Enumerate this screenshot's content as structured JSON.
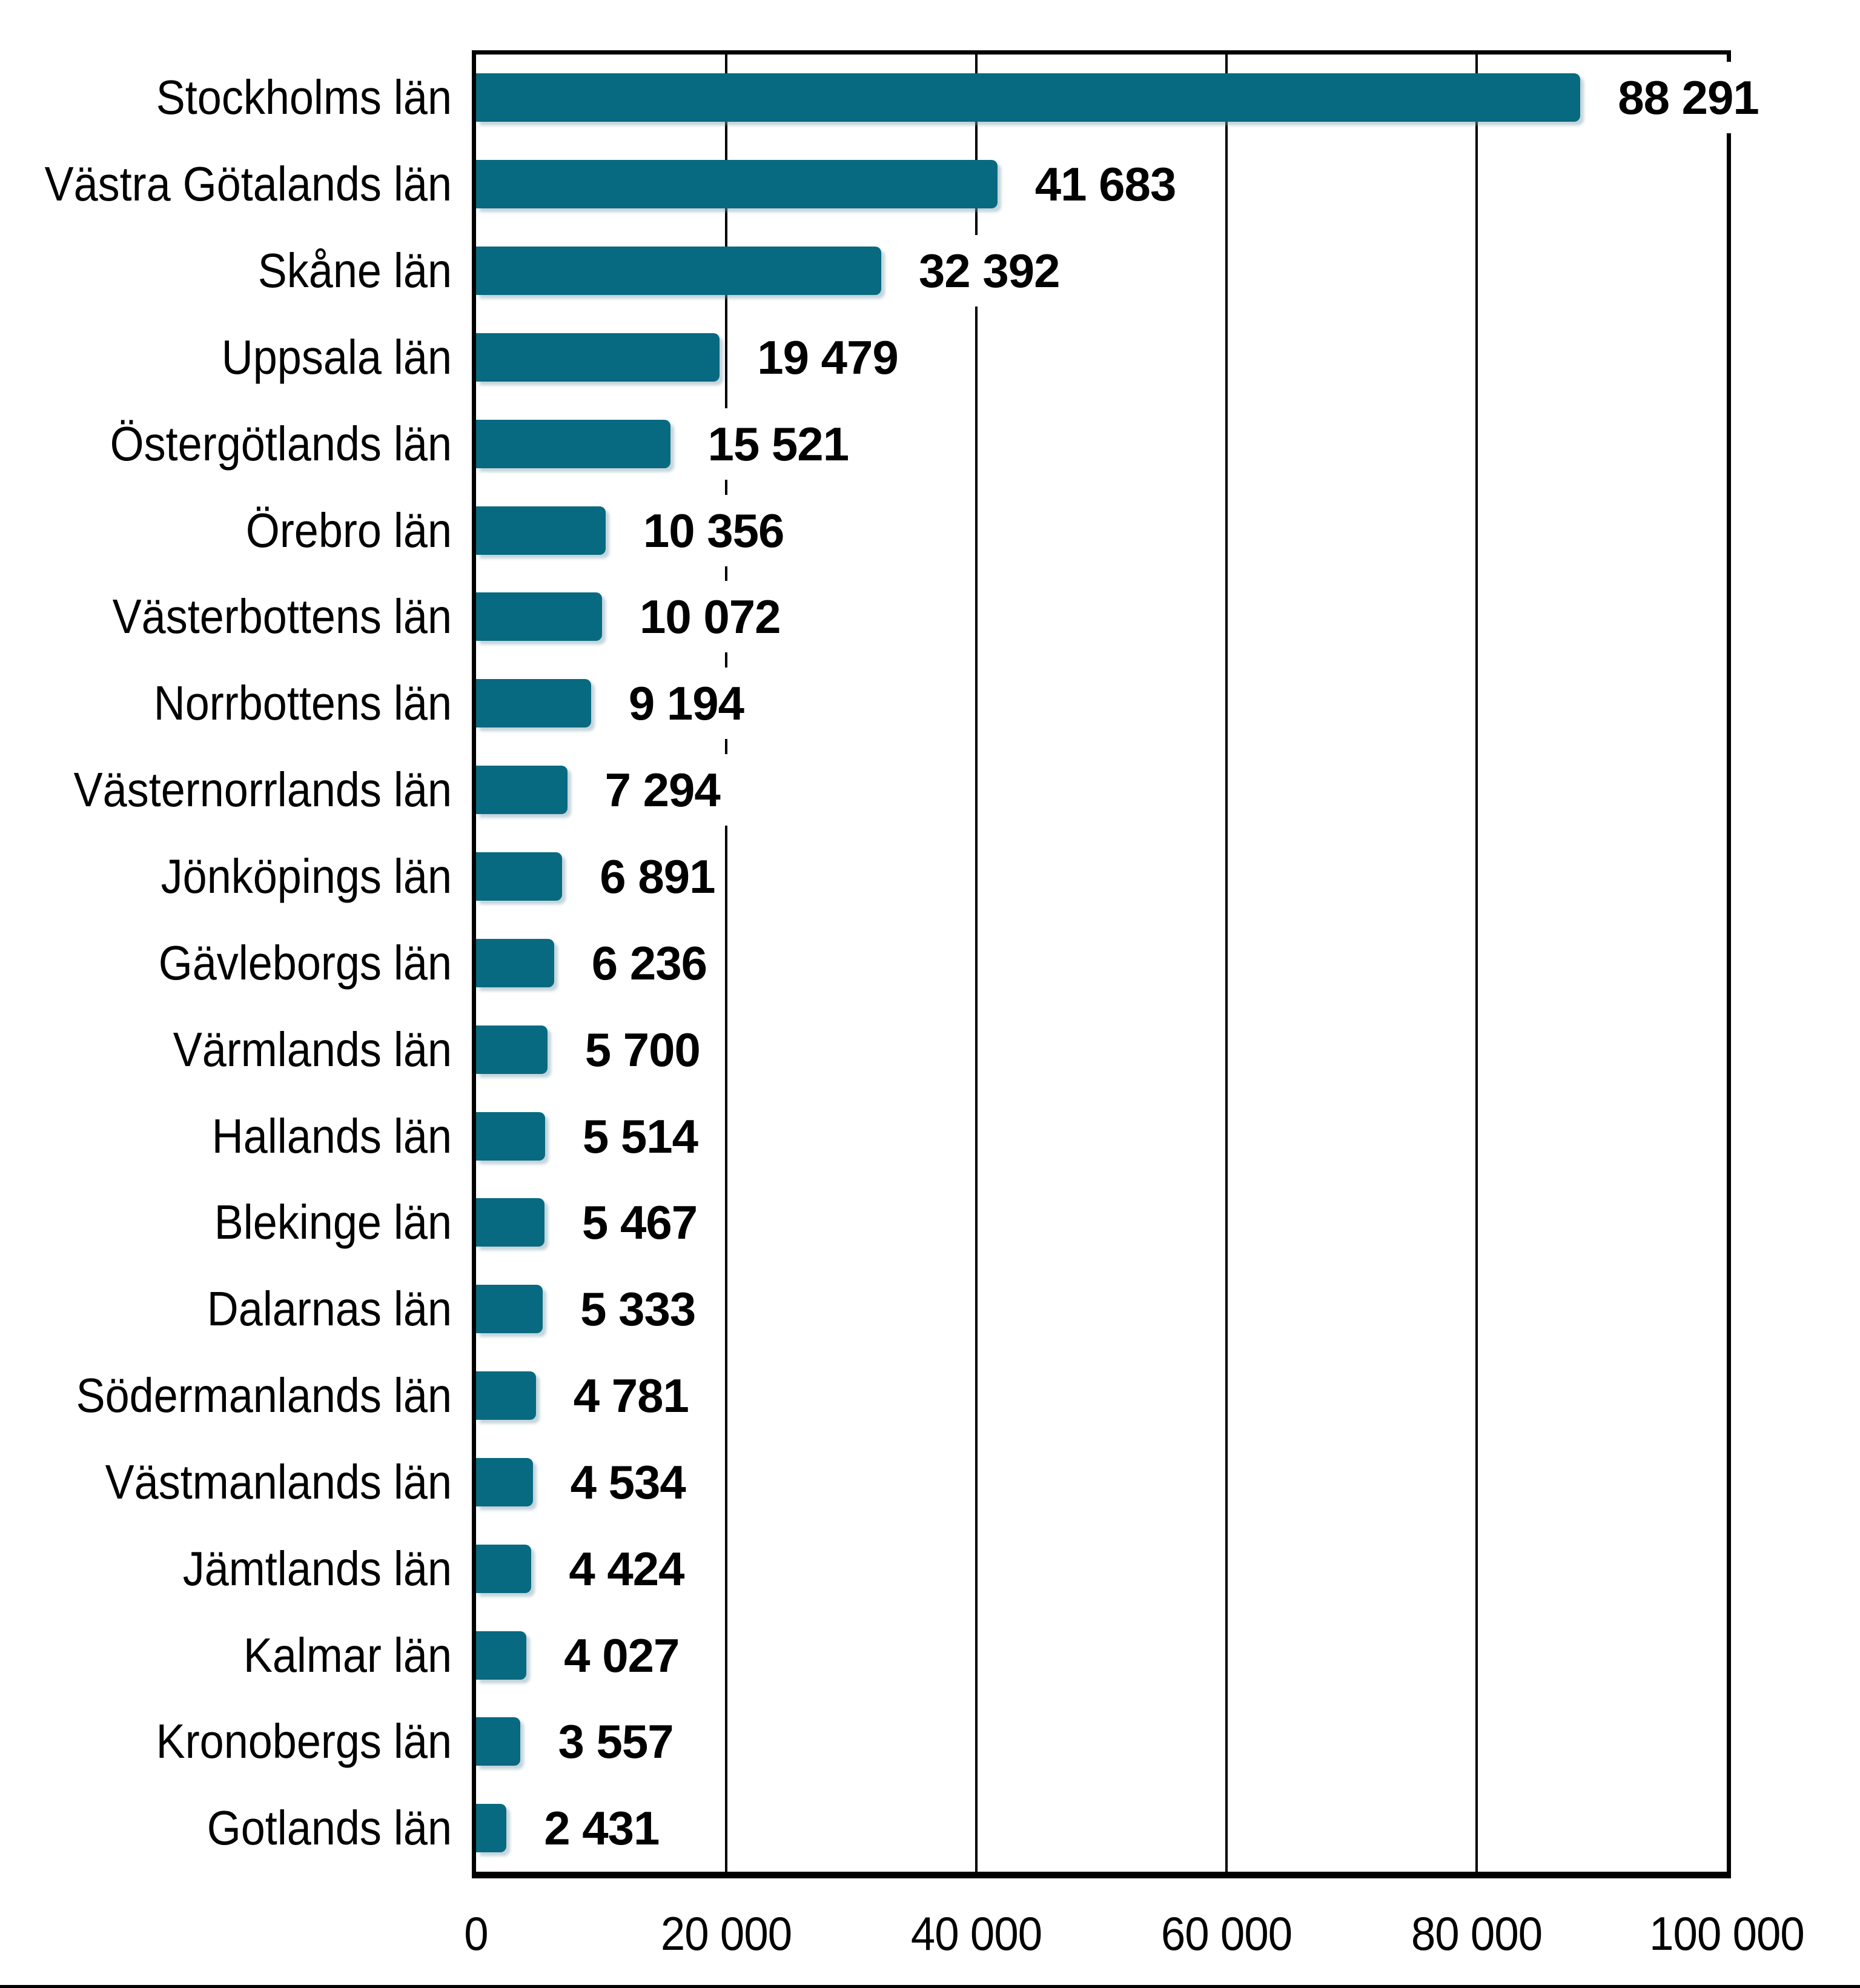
{
  "chart_data": {
    "type": "bar",
    "orientation": "horizontal",
    "title": "",
    "categories": [
      "Stockholms län",
      "Västra Götalands län",
      "Skåne län",
      "Uppsala län",
      "Östergötlands län",
      "Örebro län",
      "Västerbottens län",
      "Norrbottens län",
      "Västernorrlands län",
      "Jönköpings län",
      "Gävleborgs län",
      "Värmlands län",
      "Hallands län",
      "Blekinge län",
      "Dalarnas län",
      "Södermanlands län",
      "Västmanlands län",
      "Jämtlands län",
      "Kalmar län",
      "Kronobergs län",
      "Gotlands län"
    ],
    "values": [
      88291,
      41683,
      32392,
      19479,
      15521,
      10356,
      10072,
      9194,
      7294,
      6891,
      6236,
      5700,
      5514,
      5467,
      5333,
      4781,
      4534,
      4424,
      4027,
      3557,
      2431
    ],
    "value_labels": [
      "88 291",
      "41 683",
      "32 392",
      "19 479",
      "15 521",
      "10 356",
      "10 072",
      "9 194",
      "7 294",
      "6 891",
      "6 236",
      "5 700",
      "5 514",
      "5 467",
      "5 333",
      "4 781",
      "4 534",
      "4 424",
      "4 027",
      "3 557",
      "2 431"
    ],
    "x_ticks": [
      {
        "label": "0",
        "value": 0
      },
      {
        "label": "20 000",
        "value": 20000
      },
      {
        "label": "40 000",
        "value": 40000
      },
      {
        "label": "60 000",
        "value": 60000
      },
      {
        "label": "80 000",
        "value": 80000
      },
      {
        "label": "100 000",
        "value": 100000
      }
    ],
    "xlim": [
      0,
      100000
    ],
    "grid": true,
    "legend_position": "none",
    "bar_color": "#086a80",
    "axis_color": "#000000",
    "background_color": "#ffffff"
  }
}
